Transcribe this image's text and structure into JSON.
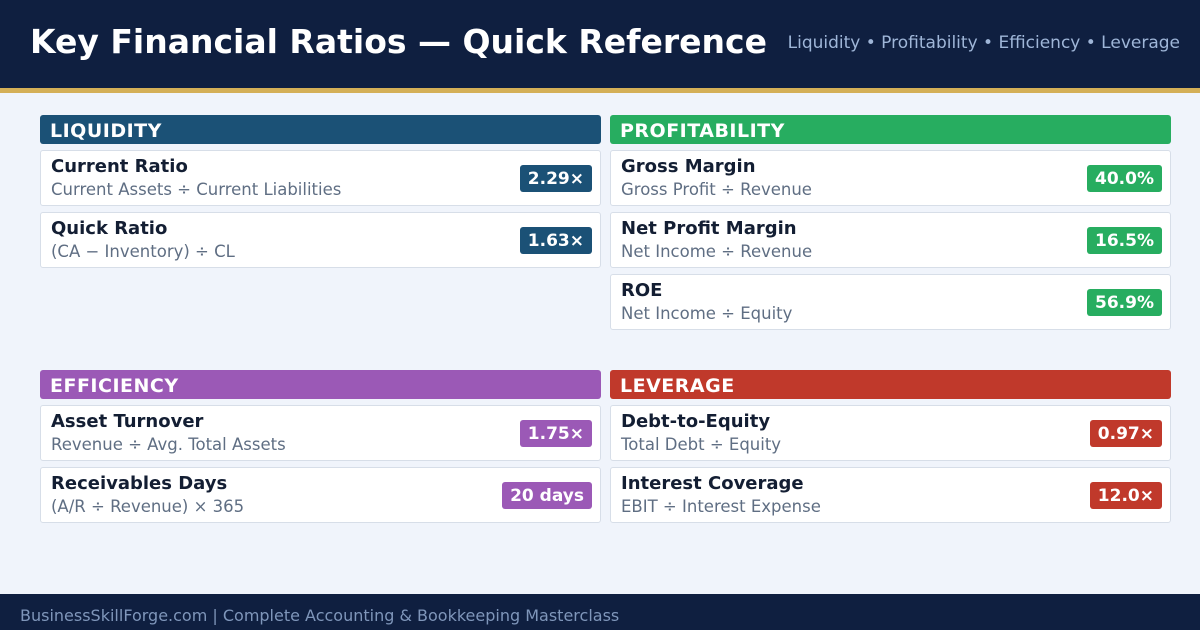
{
  "header": {
    "title": "Key Financial Ratios — Quick Reference",
    "tags": "Liquidity • Profitability • Efficiency • Leverage"
  },
  "colors": {
    "liquidity": "#1b5176",
    "profitability": "#27ad60",
    "efficiency": "#9b59b6",
    "leverage": "#c0392b",
    "navy": "#0f1f40",
    "gold": "#d4af57"
  },
  "sections": [
    {
      "title": "LIQUIDITY",
      "cards": [
        {
          "name": "Current Ratio",
          "formula": "Current Assets ÷ Current Liabilities",
          "value": "2.29×"
        },
        {
          "name": "Quick Ratio",
          "formula": "(CA − Inventory) ÷ CL",
          "value": "1.63×"
        }
      ]
    },
    {
      "title": "PROFITABILITY",
      "cards": [
        {
          "name": "Gross Margin",
          "formula": "Gross Profit ÷ Revenue",
          "value": "40.0%"
        },
        {
          "name": "Net Profit Margin",
          "formula": "Net Income ÷ Revenue",
          "value": "16.5%"
        },
        {
          "name": "ROE",
          "formula": "Net Income ÷ Equity",
          "value": "56.9%"
        }
      ]
    },
    {
      "title": "EFFICIENCY",
      "cards": [
        {
          "name": "Asset Turnover",
          "formula": "Revenue ÷ Avg. Total Assets",
          "value": "1.75×"
        },
        {
          "name": "Receivables Days",
          "formula": "(A/R ÷ Revenue) × 365",
          "value": "20 days"
        }
      ]
    },
    {
      "title": "LEVERAGE",
      "cards": [
        {
          "name": "Debt-to-Equity",
          "formula": "Total Debt ÷ Equity",
          "value": "0.97×"
        },
        {
          "name": "Interest Coverage",
          "formula": "EBIT ÷ Interest Expense",
          "value": "12.0×"
        }
      ]
    }
  ],
  "footer": {
    "text": "BusinessSkillForge.com  |  Complete Accounting & Bookkeeping Masterclass"
  }
}
